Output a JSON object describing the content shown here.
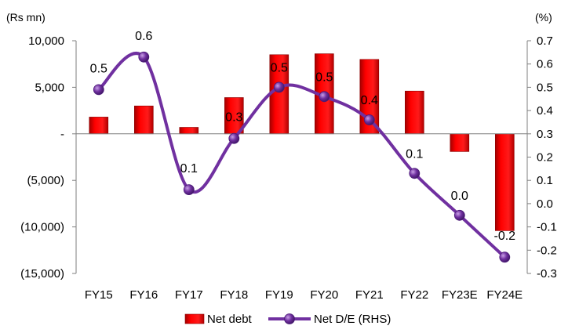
{
  "chart_data": {
    "type": "bar",
    "categories": [
      "FY15",
      "FY16",
      "FY17",
      "FY18",
      "FY19",
      "FY20",
      "FY21",
      "FY22",
      "FY23E",
      "FY24E"
    ],
    "series": [
      {
        "name": "Net debt",
        "type": "bar",
        "axis": "left",
        "color": "#ff0000",
        "values": [
          1800,
          3000,
          700,
          3900,
          8500,
          8600,
          8000,
          4600,
          -1900,
          -10400
        ]
      },
      {
        "name": "Net D/E (RHS)",
        "type": "line",
        "axis": "right",
        "color": "#7030a0",
        "values": [
          0.49,
          0.63,
          0.06,
          0.28,
          0.5,
          0.46,
          0.36,
          0.13,
          -0.05,
          -0.23
        ],
        "data_labels": [
          "0.5",
          "0.6",
          "0.1",
          "0.3",
          "0.5",
          "0.5",
          "0.4",
          "0.1",
          "0.0",
          "-0.2"
        ]
      }
    ],
    "left_axis": {
      "unit_label": "(Rs mn)",
      "ylim": [
        -15000,
        10000
      ],
      "ticks": [
        10000,
        5000,
        0,
        -5000,
        -10000,
        -15000
      ],
      "tick_labels": [
        "10,000",
        "5,000",
        "-",
        "(5,000)",
        "(10,000)",
        "(15,000)"
      ]
    },
    "right_axis": {
      "unit_label": "(%)",
      "ylim": [
        -0.3,
        0.7
      ],
      "ticks": [
        0.7,
        0.6,
        0.5,
        0.4,
        0.3,
        0.2,
        0.1,
        0.0,
        -0.1,
        -0.2,
        -0.3
      ],
      "tick_labels": [
        "0.7",
        "0.6",
        "0.5",
        "0.4",
        "0.3",
        "0.2",
        "0.1",
        "0.0",
        "-0.1",
        "-0.2",
        "-0.3"
      ]
    },
    "legend_position": "bottom",
    "grid": false
  }
}
